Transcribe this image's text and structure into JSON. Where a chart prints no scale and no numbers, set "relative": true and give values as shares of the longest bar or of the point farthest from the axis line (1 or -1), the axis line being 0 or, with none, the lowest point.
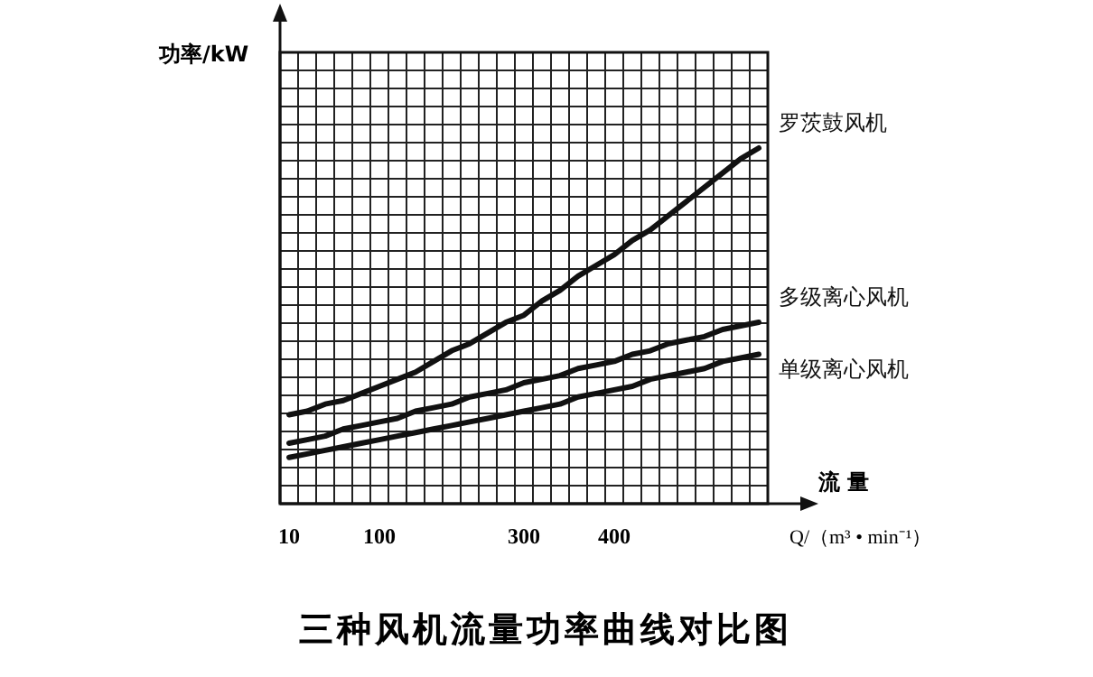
{
  "chart_data": {
    "type": "line",
    "title": "三种风机流量功率曲线对比图",
    "ylabel": "功率/kW",
    "xlabel": "Q/（m³ • min⁻¹）",
    "annotations": [
      "流 量"
    ],
    "categories": [
      "10",
      null,
      null,
      null,
      null,
      "100",
      null,
      null,
      null,
      null,
      null,
      null,
      null,
      "300",
      null,
      null,
      null,
      null,
      "400",
      null,
      null,
      null,
      null,
      null,
      null,
      null,
      null
    ],
    "relative": true,
    "grid": true,
    "line_style": "solid",
    "marker": "none",
    "series": [
      {
        "name": "罗茨鼓风机",
        "color": "#111111",
        "values": [
          0.25,
          0.26,
          0.28,
          0.29,
          0.31,
          0.33,
          0.35,
          0.37,
          0.4,
          0.43,
          0.45,
          0.48,
          0.51,
          0.53,
          0.57,
          0.6,
          0.64,
          0.67,
          0.7,
          0.74,
          0.77,
          0.81,
          0.85,
          0.89,
          0.93,
          0.97,
          1.0
        ]
      },
      {
        "name": "多级离心风机",
        "color": "#111111",
        "values": [
          0.17,
          0.18,
          0.19,
          0.21,
          0.22,
          0.23,
          0.24,
          0.26,
          0.27,
          0.28,
          0.3,
          0.31,
          0.32,
          0.34,
          0.35,
          0.36,
          0.38,
          0.39,
          0.4,
          0.42,
          0.43,
          0.45,
          0.46,
          0.47,
          0.49,
          0.5,
          0.51
        ]
      },
      {
        "name": "单级离心风机",
        "color": "#111111",
        "values": [
          0.13,
          0.14,
          0.15,
          0.16,
          0.17,
          0.18,
          0.19,
          0.2,
          0.21,
          0.22,
          0.23,
          0.24,
          0.25,
          0.26,
          0.27,
          0.28,
          0.3,
          0.31,
          0.32,
          0.33,
          0.35,
          0.36,
          0.37,
          0.38,
          0.4,
          0.41,
          0.42
        ]
      }
    ]
  }
}
